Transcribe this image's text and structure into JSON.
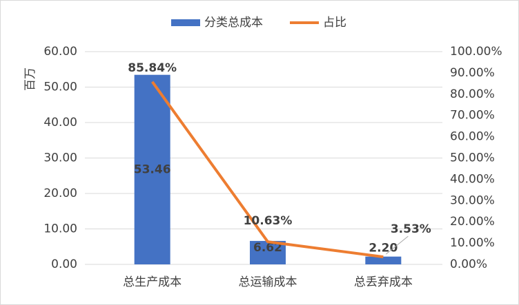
{
  "chart_data": {
    "type": "bar-line",
    "categories": [
      "总生产成本",
      "总运输成本",
      "总丢弃成本"
    ],
    "y_label": "百万",
    "series": [
      {
        "name": "分类总成本",
        "type": "bar",
        "color": "#4472c4",
        "values": [
          53.46,
          6.62,
          2.2
        ],
        "value_labels": [
          "53.46",
          "6.62",
          "2.20"
        ]
      },
      {
        "name": "占比",
        "type": "line",
        "axis": "y2",
        "color": "#ed7d31",
        "values": [
          85.84,
          10.63,
          3.53
        ],
        "value_labels": [
          "85.84%",
          "10.63%",
          "3.53%"
        ]
      }
    ],
    "ylim": [
      0,
      60
    ],
    "yticks": [
      {
        "value": 0,
        "label": "0.00"
      },
      {
        "value": 10,
        "label": "10.00"
      },
      {
        "value": 20,
        "label": "20.00"
      },
      {
        "value": 30,
        "label": "30.00"
      },
      {
        "value": 40,
        "label": "40.00"
      },
      {
        "value": 50,
        "label": "50.00"
      },
      {
        "value": 60,
        "label": "60.00"
      }
    ],
    "y2lim": [
      0,
      100
    ],
    "y2ticks": [
      {
        "value": 0,
        "label": "0.00%"
      },
      {
        "value": 10,
        "label": "10.00%"
      },
      {
        "value": 20,
        "label": "20.00%"
      },
      {
        "value": 30,
        "label": "30.00%"
      },
      {
        "value": 40,
        "label": "40.00%"
      },
      {
        "value": 50,
        "label": "50.00%"
      },
      {
        "value": 60,
        "label": "60.00%"
      },
      {
        "value": 70,
        "label": "70.00%"
      },
      {
        "value": 80,
        "label": "80.00%"
      },
      {
        "value": 90,
        "label": "90.00%"
      },
      {
        "value": 100,
        "label": "100.00%"
      }
    ],
    "grid": true,
    "legend": "top"
  }
}
